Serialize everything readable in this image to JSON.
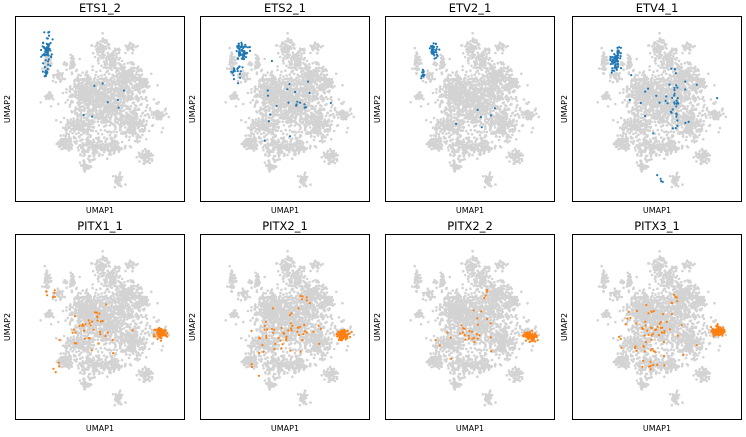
{
  "figure": {
    "background_color": "#d3d3d3",
    "highlight_colors": {
      "blue": "#1f77b4",
      "orange": "#ff7f0e"
    }
  },
  "chart_data": [
    {
      "type": "scatter",
      "title": "ETS1_2",
      "xlabel": "UMAP1",
      "ylabel": "UMAP2",
      "color": "#1f77b4",
      "xlim": [
        0,
        100
      ],
      "ylim": [
        0,
        100
      ],
      "grid": false,
      "highlights": [
        {
          "x": 14,
          "y": 86,
          "sx": 3,
          "sy": 8,
          "n": 60
        },
        {
          "x": 13,
          "y": 73,
          "sx": 2,
          "sy": 3,
          "n": 12
        },
        {
          "x": 50,
          "y": 52,
          "sx": 22,
          "sy": 18,
          "n": 8
        }
      ]
    },
    {
      "type": "scatter",
      "title": "ETS2_1",
      "xlabel": "UMAP1",
      "ylabel": "UMAP2",
      "color": "#1f77b4",
      "xlim": [
        0,
        100
      ],
      "ylim": [
        0,
        100
      ],
      "grid": false,
      "highlights": [
        {
          "x": 21,
          "y": 85,
          "sx": 4,
          "sy": 5,
          "n": 60
        },
        {
          "x": 17,
          "y": 72,
          "sx": 3,
          "sy": 4,
          "n": 20
        },
        {
          "x": 55,
          "y": 55,
          "sx": 22,
          "sy": 16,
          "n": 22
        }
      ]
    },
    {
      "type": "scatter",
      "title": "ETV2_1",
      "xlabel": "UMAP1",
      "ylabel": "UMAP2",
      "color": "#1f77b4",
      "xlim": [
        0,
        100
      ],
      "ylim": [
        0,
        100
      ],
      "grid": false,
      "highlights": [
        {
          "x": 25,
          "y": 86,
          "sx": 2.5,
          "sy": 5,
          "n": 40
        },
        {
          "x": 17,
          "y": 72,
          "sx": 2,
          "sy": 3,
          "n": 10
        },
        {
          "x": 52,
          "y": 54,
          "sx": 20,
          "sy": 18,
          "n": 6
        }
      ]
    },
    {
      "type": "scatter",
      "title": "ETV4_1",
      "xlabel": "UMAP1",
      "ylabel": "UMAP2",
      "color": "#1f77b4",
      "xlim": [
        0,
        100
      ],
      "ylim": [
        0,
        100
      ],
      "grid": false,
      "highlights": [
        {
          "x": 22,
          "y": 80,
          "sx": 3,
          "sy": 7,
          "n": 70
        },
        {
          "x": 62,
          "y": 57,
          "sx": 4,
          "sy": 14,
          "n": 30
        },
        {
          "x": 54,
          "y": 50,
          "sx": 22,
          "sy": 18,
          "n": 18
        },
        {
          "x": 52,
          "y": 8,
          "sx": 2,
          "sy": 2,
          "n": 4
        }
      ]
    },
    {
      "type": "scatter",
      "title": "PITX1_1",
      "xlabel": "UMAP1",
      "ylabel": "UMAP2",
      "color": "#ff7f0e",
      "xlim": [
        0,
        100
      ],
      "ylim": [
        0,
        100
      ],
      "grid": false,
      "highlights": [
        {
          "x": 90,
          "y": 47,
          "sx": 3.5,
          "sy": 2.5,
          "n": 95
        },
        {
          "x": 45,
          "y": 48,
          "sx": 18,
          "sy": 10,
          "n": 40
        },
        {
          "x": 18,
          "y": 70,
          "sx": 3,
          "sy": 4,
          "n": 6
        },
        {
          "x": 20,
          "y": 25,
          "sx": 3,
          "sy": 3,
          "n": 4
        }
      ]
    },
    {
      "type": "scatter",
      "title": "PITX2_1",
      "xlabel": "UMAP1",
      "ylabel": "UMAP2",
      "color": "#ff7f0e",
      "xlim": [
        0,
        100
      ],
      "ylim": [
        0,
        100
      ],
      "grid": false,
      "highlights": [
        {
          "x": 88,
          "y": 46,
          "sx": 3.5,
          "sy": 2.5,
          "n": 95
        },
        {
          "x": 48,
          "y": 46,
          "sx": 20,
          "sy": 12,
          "n": 55
        },
        {
          "x": 62,
          "y": 68,
          "sx": 3,
          "sy": 5,
          "n": 6
        }
      ]
    },
    {
      "type": "scatter",
      "title": "PITX2_2",
      "xlabel": "UMAP1",
      "ylabel": "UMAP2",
      "color": "#ff7f0e",
      "xlim": [
        0,
        100
      ],
      "ylim": [
        0,
        100
      ],
      "grid": false,
      "highlights": [
        {
          "x": 89,
          "y": 45,
          "sx": 3.5,
          "sy": 2.5,
          "n": 85
        },
        {
          "x": 50,
          "y": 46,
          "sx": 18,
          "sy": 10,
          "n": 30
        },
        {
          "x": 60,
          "y": 68,
          "sx": 3,
          "sy": 5,
          "n": 4
        }
      ]
    },
    {
      "type": "scatter",
      "title": "PITX3_1",
      "xlabel": "UMAP1",
      "ylabel": "UMAP2",
      "color": "#ff7f0e",
      "xlim": [
        0,
        100
      ],
      "ylim": [
        0,
        100
      ],
      "grid": false,
      "highlights": [
        {
          "x": 90,
          "y": 48,
          "sx": 3.5,
          "sy": 2.5,
          "n": 95
        },
        {
          "x": 48,
          "y": 48,
          "sx": 20,
          "sy": 12,
          "n": 60
        },
        {
          "x": 60,
          "y": 66,
          "sx": 3,
          "sy": 5,
          "n": 6
        },
        {
          "x": 45,
          "y": 28,
          "sx": 6,
          "sy": 4,
          "n": 8
        }
      ]
    }
  ]
}
